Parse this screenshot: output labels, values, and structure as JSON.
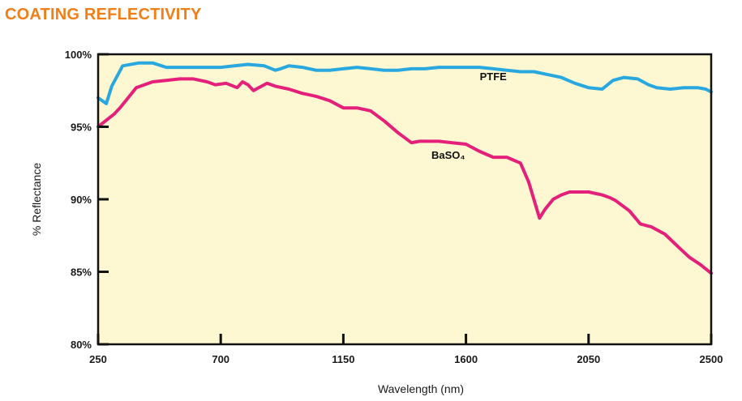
{
  "header": {
    "title": "COATING REFLECTIVITY"
  },
  "chart_data": {
    "type": "line",
    "title": "",
    "xlabel": "Wavelength (nm)",
    "ylabel": "% Reflectance",
    "xlim": [
      250,
      2500
    ],
    "ylim": [
      80,
      100
    ],
    "xticks": [
      250,
      700,
      1150,
      1600,
      2050,
      2500
    ],
    "xtick_labels": [
      "250",
      "700",
      "1150",
      "1600",
      "2050",
      "2500"
    ],
    "yticks": [
      80,
      85,
      90,
      95,
      100
    ],
    "ytick_labels": [
      "80%",
      "85%",
      "90%",
      "95%",
      "100%"
    ],
    "grid": false,
    "legend": "none",
    "background_color": "#fdf7d2",
    "series": [
      {
        "name": "PTFE",
        "color": "#29a8e0",
        "x": [
          250,
          280,
          300,
          340,
          400,
          450,
          500,
          600,
          700,
          750,
          800,
          860,
          900,
          920,
          950,
          1000,
          1050,
          1100,
          1150,
          1200,
          1250,
          1300,
          1350,
          1400,
          1450,
          1500,
          1550,
          1600,
          1650,
          1700,
          1750,
          1800,
          1850,
          1900,
          1950,
          2000,
          2050,
          2100,
          2140,
          2180,
          2230,
          2270,
          2300,
          2350,
          2400,
          2450,
          2480,
          2500
        ],
        "y": [
          97.0,
          96.6,
          97.8,
          99.2,
          99.4,
          99.4,
          99.1,
          99.1,
          99.1,
          99.2,
          99.3,
          99.2,
          98.9,
          99.0,
          99.2,
          99.1,
          98.9,
          98.9,
          99.0,
          99.1,
          99.0,
          98.9,
          98.9,
          99.0,
          99.0,
          99.1,
          99.1,
          99.1,
          99.1,
          99.0,
          98.9,
          98.8,
          98.8,
          98.6,
          98.4,
          98.0,
          97.7,
          97.6,
          98.2,
          98.4,
          98.3,
          97.9,
          97.7,
          97.6,
          97.7,
          97.7,
          97.6,
          97.4
        ]
      },
      {
        "name": "BaSO₄",
        "color": "#e4207a",
        "x": [
          250,
          290,
          310,
          330,
          360,
          390,
          450,
          500,
          550,
          600,
          650,
          680,
          720,
          760,
          780,
          800,
          820,
          850,
          870,
          900,
          950,
          1000,
          1050,
          1100,
          1150,
          1200,
          1250,
          1300,
          1350,
          1400,
          1430,
          1500,
          1550,
          1600,
          1650,
          1700,
          1750,
          1800,
          1830,
          1870,
          1890,
          1920,
          1950,
          1980,
          2000,
          2050,
          2100,
          2130,
          2150,
          2200,
          2240,
          2280,
          2330,
          2380,
          2420,
          2460,
          2500
        ],
        "y": [
          95.0,
          95.6,
          95.9,
          96.3,
          97.0,
          97.7,
          98.1,
          98.2,
          98.3,
          98.3,
          98.1,
          97.9,
          98.0,
          97.7,
          98.1,
          97.9,
          97.5,
          97.8,
          98.0,
          97.8,
          97.6,
          97.3,
          97.1,
          96.8,
          96.3,
          96.3,
          96.1,
          95.4,
          94.6,
          93.9,
          94.0,
          94.0,
          93.9,
          93.8,
          93.3,
          92.9,
          92.9,
          92.5,
          91.2,
          88.7,
          89.3,
          90.0,
          90.3,
          90.5,
          90.5,
          90.5,
          90.3,
          90.1,
          89.9,
          89.2,
          88.3,
          88.1,
          87.6,
          86.7,
          86.0,
          85.5,
          84.9
        ]
      }
    ],
    "annotations": [
      {
        "text": "PTFE",
        "x": 1700,
        "y": 98.2
      },
      {
        "text": "BaSO₄",
        "x": 1535,
        "y": 92.8
      }
    ]
  }
}
